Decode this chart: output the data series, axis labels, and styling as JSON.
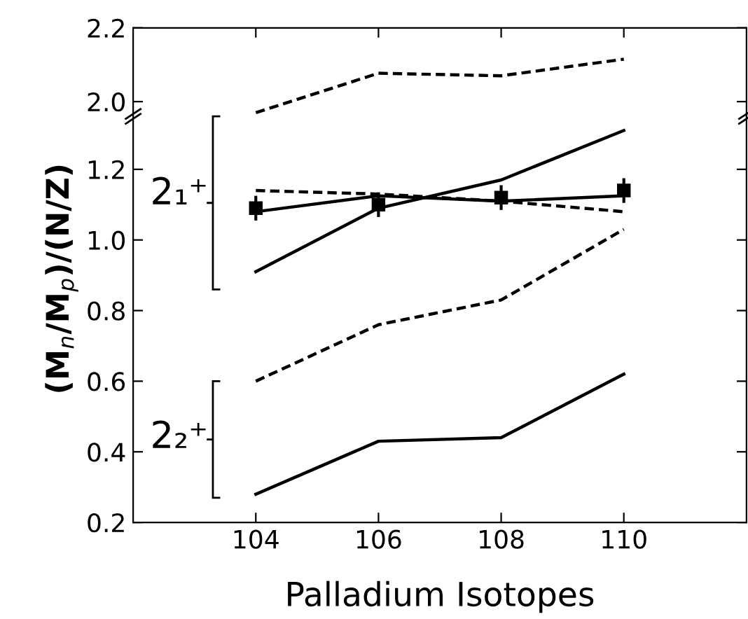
{
  "chart_data": [
    {
      "type": "line",
      "x": [
        104,
        106,
        108,
        110
      ],
      "xlim": [
        102,
        112
      ],
      "xticks": [
        104,
        106,
        108,
        110
      ],
      "ylim": [
        1.96,
        2.2
      ],
      "yticks": [
        {
          "value": 2.0,
          "label": "2.0"
        },
        2.2
      ],
      "tick_labels": "y",
      "grid": false,
      "series": [
        {
          "color": "#000000",
          "line_style": "dashed",
          "values": [
            1.97,
            2.077,
            2.07,
            2.115
          ]
        }
      ]
    },
    {
      "type": "line",
      "x": [
        104,
        106,
        108,
        110
      ],
      "xlim": [
        102,
        112
      ],
      "xticks": [
        104,
        106,
        108,
        110
      ],
      "ylim": [
        0.2,
        1.35
      ],
      "yticks": [
        0.2,
        0.4,
        0.6,
        0.8,
        {
          "value": 1.0,
          "label": "1.0"
        },
        1.2
      ],
      "grid": false,
      "xlabel": "Palladium Isotopes",
      "ylabel": "(M$_{n}$/M$_{p}$)/(N/Z)",
      "annotations": [
        "2₁⁺",
        "2₂⁺"
      ],
      "series": [
        {
          "type": "scatter",
          "color": "#000000",
          "marker": "square",
          "values": [
            1.09,
            1.1,
            1.12,
            1.14
          ],
          "errors": [
            0.035,
            0.035,
            0.035,
            0.035
          ]
        },
        {
          "color": "#000000",
          "line_style": "solid",
          "values": [
            1.08,
            1.125,
            1.11,
            1.125
          ]
        },
        {
          "color": "#000000",
          "line_style": "dashed",
          "values": [
            1.14,
            1.13,
            1.11,
            1.08
          ]
        },
        {
          "color": "#000000",
          "line_style": "solid",
          "values": [
            0.91,
            1.09,
            1.17,
            1.31
          ]
        },
        {
          "color": "#000000",
          "line_style": "dashed",
          "values": [
            0.6,
            0.76,
            0.83,
            1.03
          ]
        },
        {
          "color": "#000000",
          "line_style": "solid",
          "values": [
            0.28,
            0.43,
            0.44,
            0.62
          ]
        }
      ]
    }
  ]
}
